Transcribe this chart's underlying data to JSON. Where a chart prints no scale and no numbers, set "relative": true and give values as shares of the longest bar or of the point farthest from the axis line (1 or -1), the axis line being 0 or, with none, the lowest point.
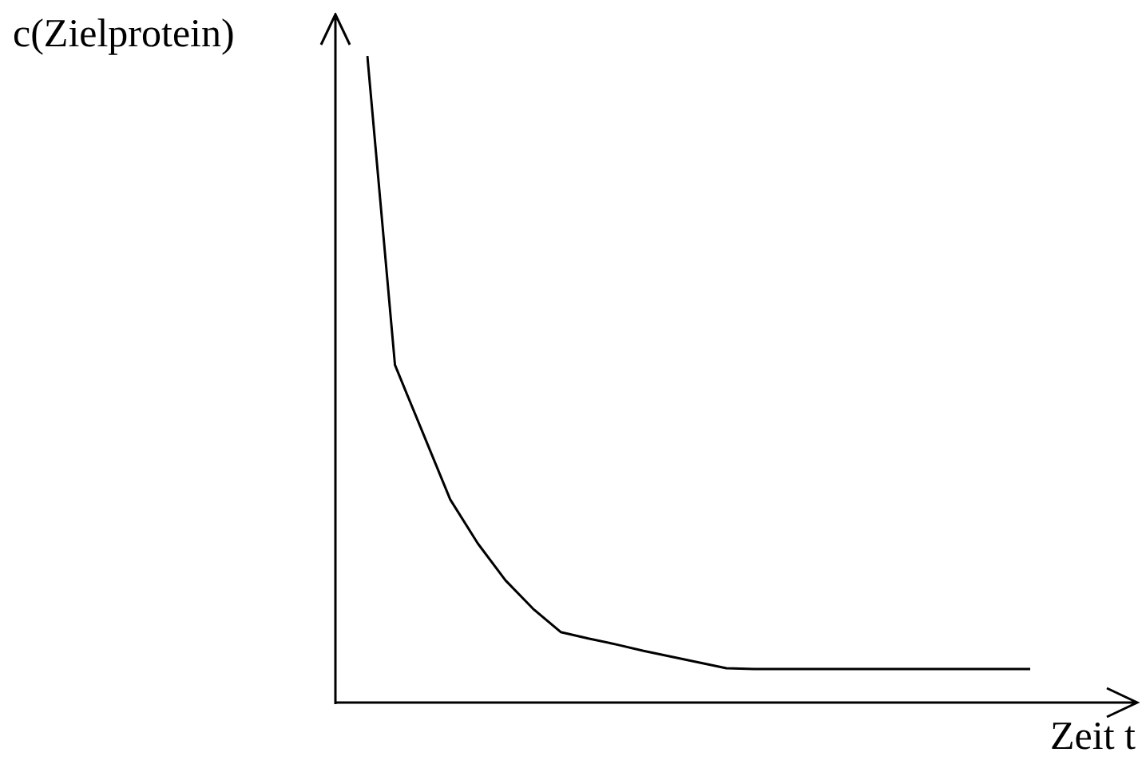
{
  "chart_data": {
    "type": "line",
    "relative": true,
    "ylabel": "c(Zielprotein)",
    "xlabel": "Zeit t",
    "categories": [
      null,
      null,
      null,
      null,
      null,
      null,
      null,
      null,
      null,
      null,
      null,
      null,
      null,
      null,
      null,
      null,
      null,
      null,
      null,
      null,
      null,
      null,
      null,
      null,
      null
    ],
    "series": [
      {
        "color": "#000000",
        "values": [
          1,
          0.522,
          0.418,
          0.314,
          0.246,
          0.189,
          0.145,
          0.109,
          0.099,
          0.09,
          0.08,
          0.071,
          0.062,
          0.053,
          0.052,
          0.052,
          0.052,
          0.052,
          0.052,
          0.052,
          0.052,
          0.052,
          0.052,
          0.052,
          0.052
        ]
      }
    ],
    "marker": "none",
    "line_style": "solid",
    "grid": false,
    "legend": false
  }
}
